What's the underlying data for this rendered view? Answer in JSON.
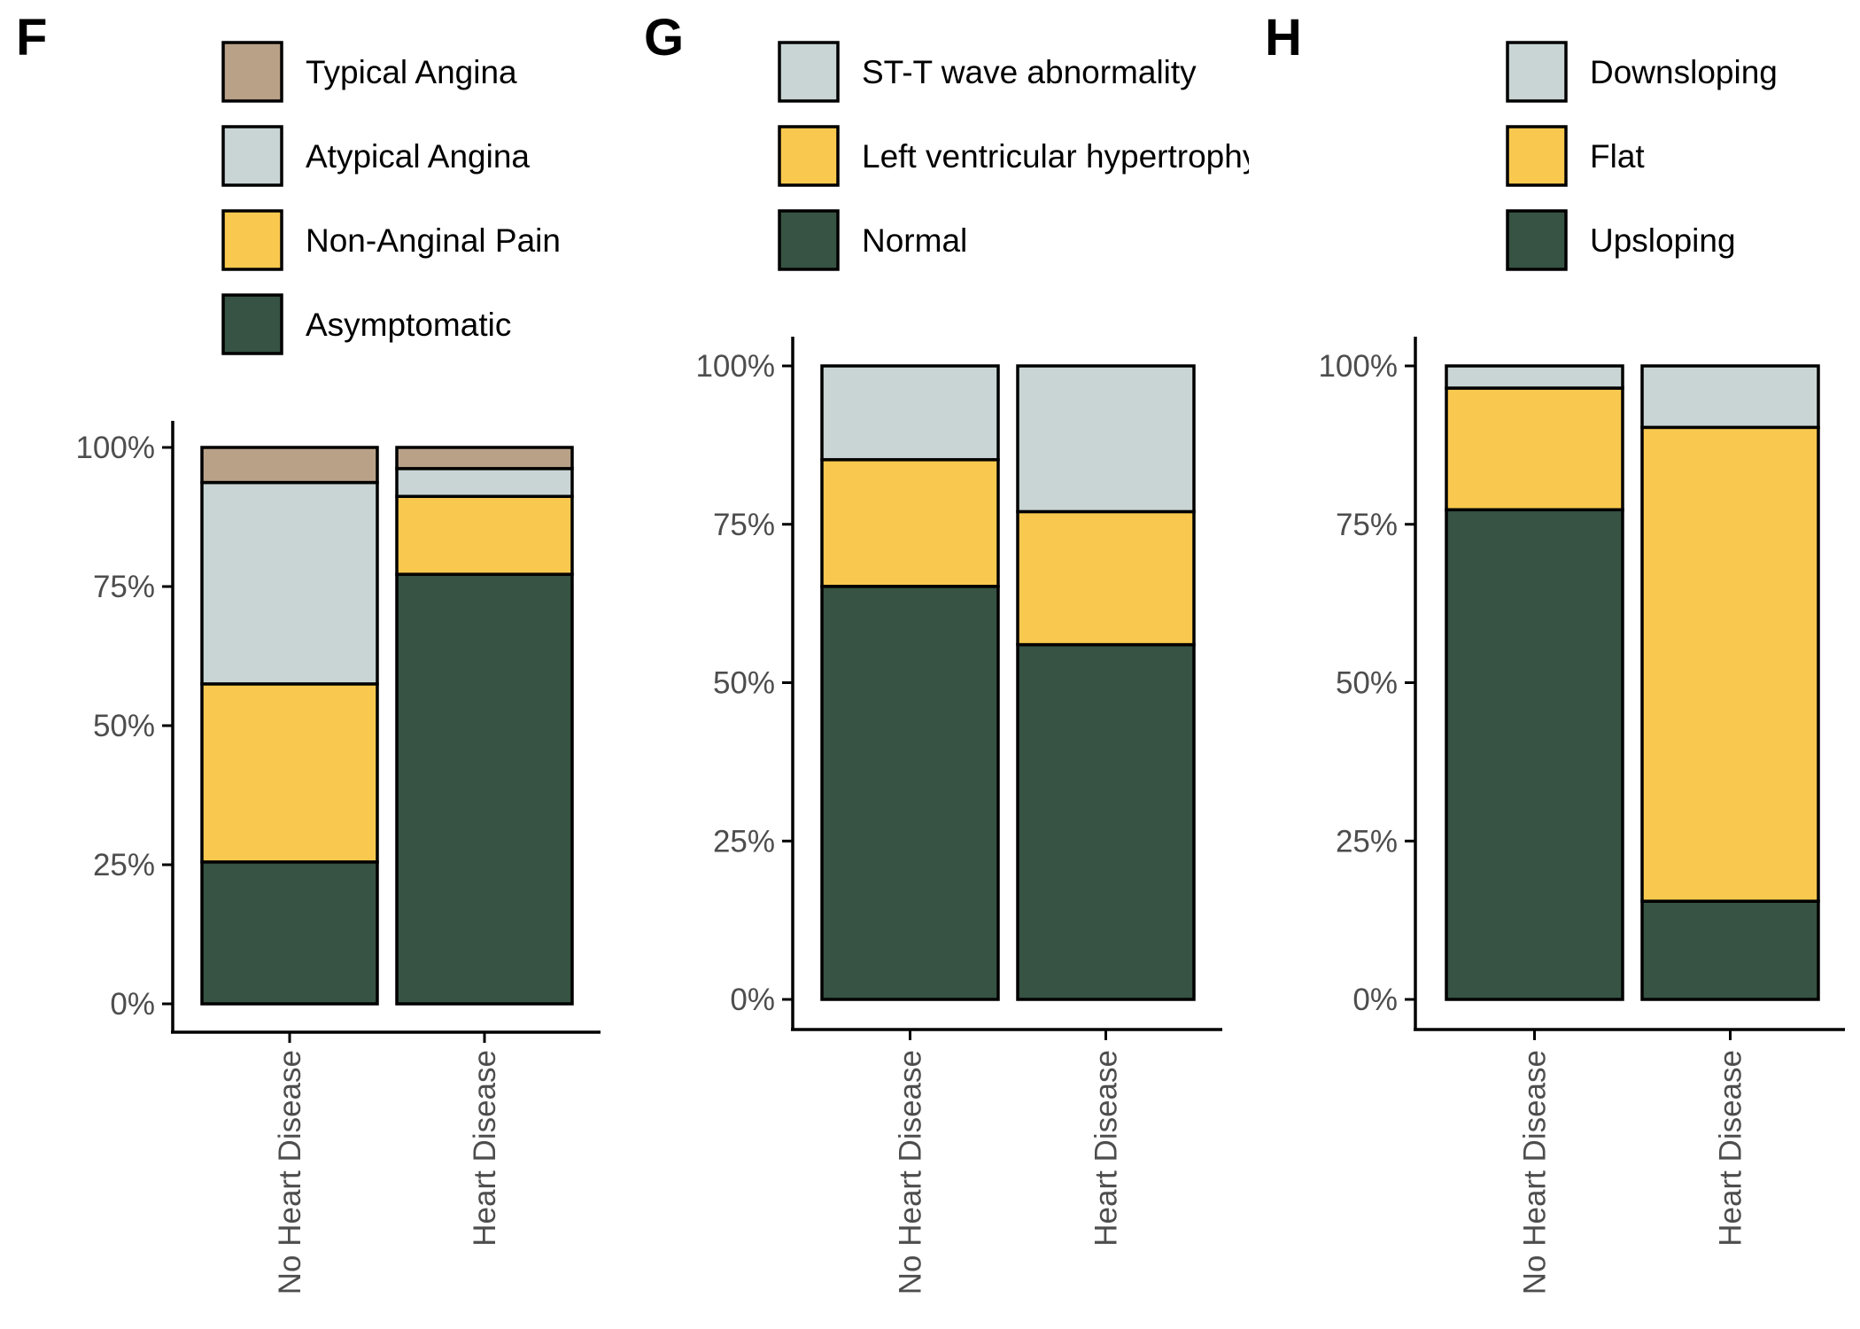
{
  "colors": {
    "typical_angina": "#b9a188",
    "light_grey": "#c8d5d4",
    "yellow": "#f9c94f",
    "dark_green": "#365343",
    "outline": "#000000",
    "tick_text": "#4d4d4d"
  },
  "chart_data": [
    {
      "panel": "F",
      "type": "bar",
      "stacked": true,
      "categories": [
        "No Heart Disease",
        "Heart Disease"
      ],
      "ylim": [
        0,
        1
      ],
      "yticks": [
        0,
        0.25,
        0.5,
        0.75,
        1.0
      ],
      "ytick_labels": [
        "0%",
        "25%",
        "50%",
        "75%",
        "100%"
      ],
      "legend_position": "top",
      "series": [
        {
          "name": "Asymptomatic",
          "color": "#365343",
          "values": [
            0.255,
            0.772
          ]
        },
        {
          "name": "Non-Anginal Pain",
          "color": "#f9c94f",
          "values": [
            0.32,
            0.14
          ]
        },
        {
          "name": "Atypical Angina",
          "color": "#c8d5d4",
          "values": [
            0.362,
            0.05
          ]
        },
        {
          "name": "Typical Angina",
          "color": "#b9a188",
          "values": [
            0.063,
            0.038
          ]
        }
      ],
      "legend_order": [
        "Typical Angina",
        "Atypical Angina",
        "Non-Anginal Pain",
        "Asymptomatic"
      ]
    },
    {
      "panel": "G",
      "type": "bar",
      "stacked": true,
      "categories": [
        "No Heart Disease",
        "Heart Disease"
      ],
      "ylim": [
        0,
        1
      ],
      "yticks": [
        0,
        0.25,
        0.5,
        0.75,
        1.0
      ],
      "ytick_labels": [
        "0%",
        "25%",
        "50%",
        "75%",
        "100%"
      ],
      "legend_position": "top",
      "series": [
        {
          "name": "Normal",
          "color": "#365343",
          "values": [
            0.652,
            0.56
          ]
        },
        {
          "name": "Left ventricular hypertrophy",
          "color": "#f9c94f",
          "values": [
            0.2,
            0.21
          ]
        },
        {
          "name": "ST-T wave abnormality",
          "color": "#c8d5d4",
          "values": [
            0.148,
            0.23
          ]
        }
      ],
      "legend_order": [
        "ST-T wave abnormality",
        "Left ventricular hypertrophy",
        "Normal"
      ]
    },
    {
      "panel": "H",
      "type": "bar",
      "stacked": true,
      "categories": [
        "No Heart Disease",
        "Heart Disease"
      ],
      "ylim": [
        0,
        1
      ],
      "yticks": [
        0,
        0.25,
        0.5,
        0.75,
        1.0
      ],
      "ytick_labels": [
        "0%",
        "25%",
        "50%",
        "75%",
        "100%"
      ],
      "legend_position": "top",
      "series": [
        {
          "name": "Upsloping",
          "color": "#365343",
          "values": [
            0.773,
            0.155
          ]
        },
        {
          "name": "Flat",
          "color": "#f9c94f",
          "values": [
            0.192,
            0.748
          ]
        },
        {
          "name": "Downsloping",
          "color": "#c8d5d4",
          "values": [
            0.035,
            0.097
          ]
        }
      ],
      "legend_order": [
        "Downsloping",
        "Flat",
        "Upsloping"
      ]
    }
  ]
}
